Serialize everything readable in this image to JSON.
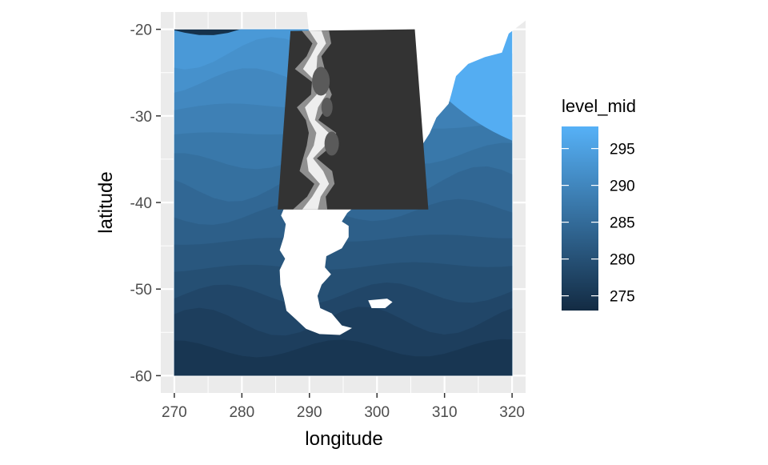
{
  "chart_data": {
    "type": "heatmap",
    "xlabel": "longitude",
    "ylabel": "latitude",
    "xlim": [
      268,
      322
    ],
    "ylim": [
      -62,
      -18
    ],
    "x_ticks": [
      270,
      280,
      290,
      300,
      310,
      320
    ],
    "y_ticks": [
      -20,
      -30,
      -40,
      -50,
      -60
    ],
    "grid": true,
    "legend": {
      "title": "level_mid",
      "position": "right",
      "ticks": [
        295,
        290,
        285,
        280,
        275
      ],
      "range": [
        273,
        298
      ],
      "color_low": "#132B43",
      "color_high": "#56B1F7"
    },
    "field": {
      "lon_range": [
        270,
        320
      ],
      "lat_range": [
        -60,
        -20
      ],
      "description_levels": "sea surface temperature bands, warm (light) north to cold (dark) south"
    },
    "overlay": {
      "type": "elevation-raster",
      "corners_lonlat": [
        [
          287.2,
          -20.2
        ],
        [
          305.6,
          -20.0
        ],
        [
          307.6,
          -40.8
        ],
        [
          285.3,
          -40.8
        ]
      ],
      "colors": [
        "#333333",
        "#ffffff"
      ]
    },
    "land_color": "#ffffff",
    "panel_background": "#EBEBEB"
  }
}
